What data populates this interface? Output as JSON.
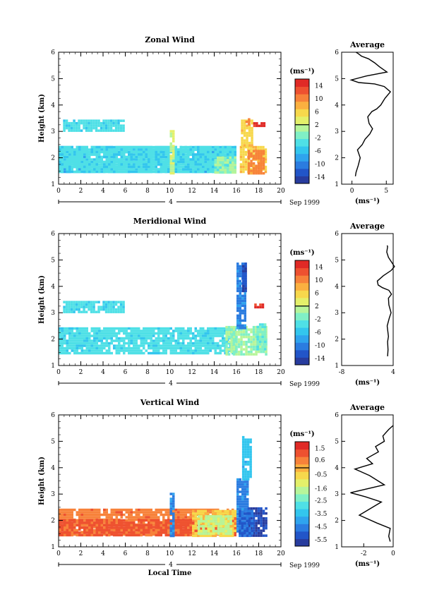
{
  "x_axis": {
    "ticks": [
      "0",
      "2",
      "4",
      "6",
      "8",
      "10",
      "12",
      "14",
      "16",
      "18",
      "20"
    ],
    "range": [
      0,
      20
    ],
    "date_day": "4",
    "date_label": "Sep 1999",
    "label": "Local Time"
  },
  "y_axis": {
    "label": "Height (km)",
    "ticks": [
      "1",
      "2",
      "3",
      "4",
      "5",
      "6"
    ],
    "range": [
      1,
      6
    ]
  },
  "unit_label": "(ms⁻¹)",
  "avg_title": "Average",
  "colors": {
    "scale": [
      "#283c9e",
      "#2255c8",
      "#2b7ce0",
      "#2fa4ee",
      "#33c6ee",
      "#4fe0e6",
      "#80f0c6",
      "#b7f59a",
      "#e4f06a",
      "#f7d84c",
      "#fbb040",
      "#f7823a",
      "#ee5130",
      "#e02a26"
    ]
  },
  "chart_data": [
    {
      "type": "heatmap",
      "title": "Zonal Wind",
      "xlabel": "",
      "ylabel": "Height (km)",
      "xlim": [
        0,
        20
      ],
      "ylim": [
        1,
        6
      ],
      "colorbar": {
        "ticks": [
          "14",
          "10",
          "6",
          "2",
          "-2",
          "-6",
          "-10",
          "-14"
        ],
        "range": [
          -16,
          16
        ],
        "zero_line": 2
      },
      "blocks": [
        {
          "x": [
            0.0,
            16.0
          ],
          "y": [
            1.45,
            2.45
          ],
          "v": -6
        },
        {
          "x": [
            0.0,
            15.9
          ],
          "y": [
            1.45,
            2.45
          ],
          "v": -4
        },
        {
          "x": [
            14.0,
            16.0
          ],
          "y": [
            1.45,
            2.05
          ],
          "v": 0
        },
        {
          "x": [
            10.0,
            10.3
          ],
          "y": [
            1.45,
            3.05
          ],
          "v": 2
        },
        {
          "x": [
            0.4,
            5.8
          ],
          "y": [
            3.05,
            3.45
          ],
          "v": -4
        },
        {
          "x": [
            16.3,
            18.6
          ],
          "y": [
            1.45,
            2.45
          ],
          "v": 6
        },
        {
          "x": [
            16.4,
            17.4
          ],
          "y": [
            2.45,
            3.45
          ],
          "v": 6
        },
        {
          "x": [
            17.0,
            18.5
          ],
          "y": [
            1.45,
            2.3
          ],
          "v": 10
        },
        {
          "x": [
            17.5,
            18.4
          ],
          "y": [
            3.2,
            3.35
          ],
          "v": 14
        },
        {
          "x": [
            16.8,
            17.1
          ],
          "y": [
            3.3,
            3.5
          ],
          "v": 10
        }
      ],
      "average": {
        "x": [
          0.5,
          0.6,
          0.9,
          1.2,
          0.8,
          1.5,
          1.9,
          2.6,
          3.0,
          2.5,
          2.3,
          2.9,
          3.6,
          4.2,
          4.8,
          5.6,
          4.7,
          3.3,
          1.0,
          -0.1,
          2.1,
          5.1,
          4.0,
          3.3,
          2.4,
          1.4,
          0.9,
          0.6
        ],
        "y": [
          1.3,
          1.45,
          1.7,
          2.0,
          2.3,
          2.5,
          2.7,
          2.9,
          3.1,
          3.3,
          3.55,
          3.75,
          3.85,
          4.0,
          4.25,
          4.5,
          4.7,
          4.8,
          4.85,
          4.95,
          5.1,
          5.25,
          5.45,
          5.6,
          5.75,
          5.85,
          5.95,
          6.0
        ],
        "xticks": [
          "0",
          "5"
        ],
        "xlim": [
          -1.5,
          6
        ]
      }
    },
    {
      "type": "heatmap",
      "title": "Meridional Wind",
      "xlabel": "",
      "ylabel": "Height (km)",
      "xlim": [
        0,
        20
      ],
      "ylim": [
        1,
        6
      ],
      "colorbar": {
        "ticks": [
          "14",
          "10",
          "6",
          "2",
          "-2",
          "-6",
          "-10",
          "-14"
        ],
        "range": [
          -16,
          16
        ],
        "zero_line": 2
      },
      "blocks": [
        {
          "x": [
            0.0,
            16.0
          ],
          "y": [
            1.45,
            2.45
          ],
          "v": -4
        },
        {
          "x": [
            15.0,
            18.6
          ],
          "y": [
            1.45,
            2.5
          ],
          "v": 0
        },
        {
          "x": [
            0.4,
            5.8
          ],
          "y": [
            3.05,
            3.45
          ],
          "v": -4
        },
        {
          "x": [
            16.0,
            16.8
          ],
          "y": [
            2.45,
            4.9
          ],
          "v": -10
        },
        {
          "x": [
            16.5,
            16.8
          ],
          "y": [
            3.8,
            4.9
          ],
          "v": -14
        },
        {
          "x": [
            17.6,
            18.4
          ],
          "y": [
            3.25,
            3.35
          ],
          "v": 14
        },
        {
          "x": [
            17.8,
            18.6
          ],
          "y": [
            1.6,
            2.6
          ],
          "v": -2
        }
      ],
      "average": {
        "x": [
          2.7,
          2.8,
          2.7,
          2.9,
          2.6,
          3.1,
          3.5,
          3.0,
          2.9,
          3.6,
          3.0,
          1.5,
          0.5,
          0.3,
          1.7,
          3.5,
          4.3,
          3.9,
          3.3,
          2.9,
          2.5,
          2.7,
          2.6
        ],
        "y": [
          1.35,
          1.6,
          1.9,
          2.1,
          2.5,
          2.8,
          3.0,
          3.3,
          3.55,
          3.7,
          3.85,
          3.95,
          4.05,
          4.2,
          4.4,
          4.6,
          4.75,
          4.85,
          5.0,
          5.1,
          5.3,
          5.5,
          5.55
        ],
        "xticks": [
          "-8",
          "4"
        ],
        "xlim": [
          -8,
          4
        ]
      }
    },
    {
      "type": "heatmap",
      "title": "Vertical Wind",
      "xlabel": "Local Time",
      "ylabel": "Height (km)",
      "xlim": [
        0,
        20
      ],
      "ylim": [
        1,
        6
      ],
      "colorbar": {
        "ticks": [
          "1.5",
          "0.6",
          "-0.5",
          "-1.6",
          "-2.5",
          "-3.5",
          "-4.5",
          "-5.5"
        ],
        "range": [
          -6,
          2
        ],
        "zero_line": 0
      },
      "blocks": [
        {
          "x": [
            0.0,
            16.0
          ],
          "y": [
            1.45,
            2.45
          ],
          "v": 0.6
        },
        {
          "x": [
            0.0,
            16.0
          ],
          "y": [
            1.45,
            2.05
          ],
          "v": 1.0
        },
        {
          "x": [
            10.0,
            10.4
          ],
          "y": [
            1.45,
            3.05
          ],
          "v": -4.5
        },
        {
          "x": [
            12.0,
            16.0
          ],
          "y": [
            1.45,
            2.4
          ],
          "v": -0.5
        },
        {
          "x": [
            12.5,
            15.5
          ],
          "y": [
            1.5,
            2.2
          ],
          "v": -1.6
        },
        {
          "x": [
            16.0,
            17.0
          ],
          "y": [
            1.45,
            3.6
          ],
          "v": -4.5
        },
        {
          "x": [
            16.5,
            17.2
          ],
          "y": [
            3.6,
            5.2
          ],
          "v": -3.5
        },
        {
          "x": [
            17.0,
            18.6
          ],
          "y": [
            1.45,
            2.5
          ],
          "v": -5.5
        },
        {
          "x": [
            16.2,
            17.4
          ],
          "y": [
            1.45,
            2.4
          ],
          "v": -5.0
        }
      ],
      "average": {
        "x": [
          -0.2,
          -0.3,
          -0.2,
          -1.1,
          -2.3,
          -1.4,
          -0.8,
          -1.9,
          -2.9,
          -0.6,
          -1.6,
          -2.6,
          -1.4,
          -1.8,
          -1.0,
          -1.2,
          -0.6,
          -0.7,
          -0.3,
          0.0
        ],
        "y": [
          1.2,
          1.4,
          1.7,
          1.9,
          2.2,
          2.5,
          2.7,
          2.9,
          3.05,
          3.35,
          3.7,
          3.95,
          4.15,
          4.35,
          4.6,
          4.8,
          5.0,
          5.2,
          5.45,
          5.6
        ],
        "xticks": [
          "-2",
          "0"
        ],
        "xlim": [
          -3.5,
          0
        ]
      }
    }
  ]
}
